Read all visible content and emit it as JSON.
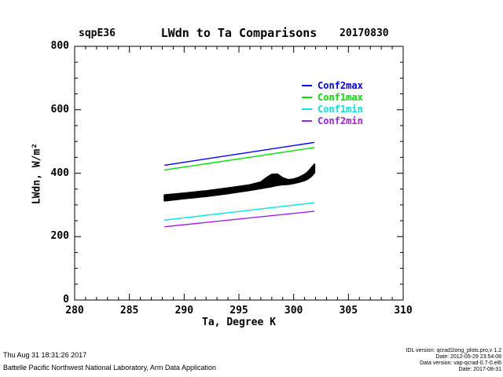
{
  "header": {
    "site": "sqpE36",
    "title": "LWdn to Ta Comparisons",
    "date": "20170830"
  },
  "footer": {
    "left_line1": "Thu Aug 31 18:31:26 2017",
    "left_line2": "Battelle Pacific Northwest National Laboratory, Arm Data Application",
    "right_lines": [
      "IDL version: qcrad1long_plots.pro,v 1.2",
      "Date: 2012-05-29 23:54:08",
      "Data version: vap-qcrad-0.7-0.el6",
      "Date: 2017-08-31"
    ]
  },
  "chart_data": {
    "type": "line",
    "title": "LWdn to Ta Comparisons",
    "site": "sqpE36",
    "date_label": "20170830",
    "xlabel": "Ta, Degree K",
    "ylabel": "LWdn, W/m²",
    "xlim": [
      280,
      310
    ],
    "ylim": [
      0,
      800
    ],
    "xticks": [
      280,
      285,
      290,
      295,
      300,
      305,
      310
    ],
    "yticks": [
      0,
      200,
      400,
      600,
      800
    ],
    "x_minor_step": 1,
    "y_minor_step": 50,
    "grid": false,
    "legend_position": "upper-right-inside",
    "legend": [
      {
        "label": "Conf2max",
        "color": "#0000FF"
      },
      {
        "label": "Conf1max",
        "color": "#00E300"
      },
      {
        "label": "Conf1min",
        "color": "#00E5E5"
      },
      {
        "label": "Conf2min",
        "color": "#A020F0"
      }
    ],
    "series": [
      {
        "name": "Conf2max",
        "color": "#0000FF",
        "x": [
          288.2,
          301.9
        ],
        "y": [
          425,
          497
        ]
      },
      {
        "name": "Conf1max",
        "color": "#00E300",
        "x": [
          288.2,
          301.9
        ],
        "y": [
          410,
          481
        ]
      },
      {
        "name": "Conf1min",
        "color": "#00E5E5",
        "x": [
          288.2,
          301.9
        ],
        "y": [
          252,
          307
        ]
      },
      {
        "name": "Conf2min",
        "color": "#A020F0",
        "x": [
          288.2,
          301.9
        ],
        "y": [
          231,
          280
        ]
      }
    ],
    "scatter_band": {
      "name": "LWdn observations vs Ta",
      "color": "#000000",
      "upper": [
        [
          288.2,
          331
        ],
        [
          290,
          337
        ],
        [
          292,
          344
        ],
        [
          294,
          353
        ],
        [
          295,
          358
        ],
        [
          296,
          363
        ],
        [
          297,
          372
        ],
        [
          297.5,
          385
        ],
        [
          298,
          396
        ],
        [
          298.5,
          397
        ],
        [
          299,
          385
        ],
        [
          299.5,
          379
        ],
        [
          300,
          381
        ],
        [
          300.5,
          387
        ],
        [
          301,
          396
        ],
        [
          301.3,
          404
        ],
        [
          301.6,
          416
        ],
        [
          301.9,
          428
        ]
      ],
      "lower": [
        [
          288.2,
          313
        ],
        [
          290,
          320
        ],
        [
          292,
          327
        ],
        [
          294,
          336
        ],
        [
          295,
          341
        ],
        [
          296,
          346
        ],
        [
          297,
          352
        ],
        [
          297.5,
          355
        ],
        [
          298,
          358
        ],
        [
          298.5,
          362
        ],
        [
          299,
          364
        ],
        [
          299.5,
          365
        ],
        [
          300,
          368
        ],
        [
          300.5,
          372
        ],
        [
          301,
          377
        ],
        [
          301.3,
          382
        ],
        [
          301.6,
          390
        ],
        [
          301.9,
          402
        ]
      ]
    }
  }
}
